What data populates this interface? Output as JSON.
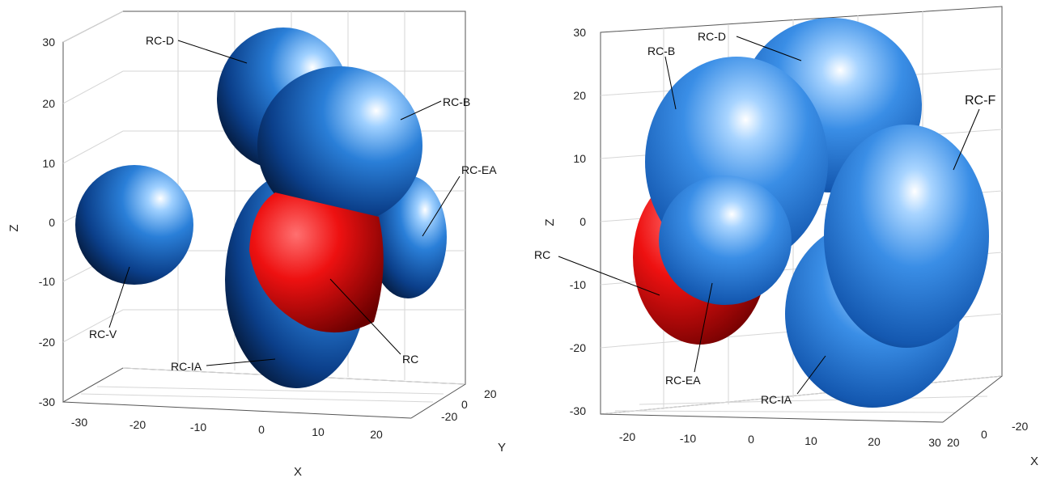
{
  "left": {
    "z_ticks": [
      "30",
      "20",
      "10",
      "0",
      "-10",
      "-20",
      "-30"
    ],
    "x_ticks": [
      "-30",
      "-20",
      "-10",
      "0",
      "10",
      "20"
    ],
    "y_ticks": [
      "20",
      "0",
      "-20"
    ],
    "axis_labels": {
      "z": "Z",
      "x": "X",
      "y": "Y"
    },
    "labels": {
      "rc_d": "RC-D",
      "rc_b": "RC-B",
      "rc_ea": "RC-EA",
      "rc_v": "RC-V",
      "rc_ia": "RC-IA",
      "rc": "RC"
    }
  },
  "right": {
    "z_ticks": [
      "30",
      "20",
      "10",
      "0",
      "-10",
      "-20",
      "-30"
    ],
    "y_ticks": [
      "-20",
      "-10",
      "0",
      "10",
      "20",
      "30"
    ],
    "x_ticks": [
      "-20",
      "0",
      "20"
    ],
    "axis_labels": {
      "z": "Z",
      "x": "X"
    },
    "labels": {
      "rc_d": "RC-D",
      "rc_b": "RC-B",
      "rc_f": "RC-F",
      "rc": "RC",
      "rc_ea": "RC-EA",
      "rc_ia": "RC-IA"
    }
  },
  "colors": {
    "blue": "#2a7fd8",
    "blue_dark": "#062050",
    "red": "#ee1111"
  }
}
